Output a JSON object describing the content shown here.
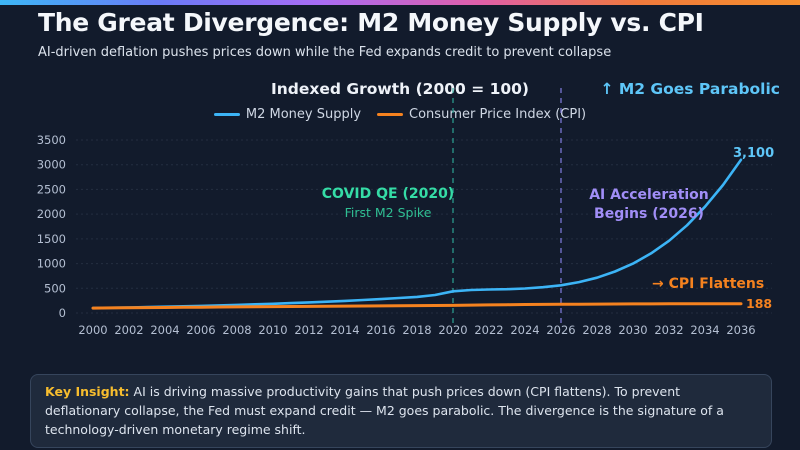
{
  "colors": {
    "background": "#121b2c",
    "panel": "#1f2a3c",
    "panel_border": "#36455c",
    "title_text": "#f4f7fb",
    "subtitle_text": "#dbe2ec",
    "axis_text": "#b4bfd2",
    "m2_blue": "#3cb4f6",
    "m2_label": "#5ec6f8",
    "cpi_orange": "#f5821f",
    "covid_green": "#35dca6",
    "ai_purple": "#a18ef7",
    "insight_gold": "#f7bd2e",
    "marker_teal": "#2fae9d",
    "marker_purple": "#8b85f0"
  },
  "accent_gradient": [
    "#3db7f7",
    "#6a7bf7",
    "#a86cf5",
    "#e05fa9",
    "#f07a3c",
    "#f78f2e"
  ],
  "header": {
    "title": "The Great Divergence: M2 Money Supply vs. CPI",
    "subtitle": "AI-driven deflation pushes prices down while the Fed expands credit to prevent collapse"
  },
  "chart_data": {
    "type": "line",
    "title": "Indexed Growth (2000 = 100)",
    "xlabel": "",
    "ylabel": "",
    "xlim": [
      2000,
      2036
    ],
    "ylim": [
      0,
      3500
    ],
    "grid": true,
    "legend_position": "top-center",
    "x": [
      2000,
      2001,
      2002,
      2003,
      2004,
      2005,
      2006,
      2007,
      2008,
      2009,
      2010,
      2011,
      2012,
      2013,
      2014,
      2015,
      2016,
      2017,
      2018,
      2019,
      2020,
      2021,
      2022,
      2023,
      2024,
      2025,
      2026,
      2027,
      2028,
      2029,
      2030,
      2031,
      2032,
      2033,
      2034,
      2035,
      2036
    ],
    "xticks": [
      2000,
      2002,
      2004,
      2006,
      2008,
      2010,
      2012,
      2014,
      2016,
      2018,
      2020,
      2022,
      2024,
      2026,
      2028,
      2030,
      2032,
      2034,
      2036
    ],
    "yticks": [
      0,
      500,
      1000,
      1500,
      2000,
      2500,
      3000,
      3500
    ],
    "series": [
      {
        "name": "M2 Money Supply",
        "color": "#3cb4f6",
        "line_width": 2.6,
        "end_label": "3,100",
        "values": [
          100,
          106,
          112,
          119,
          127,
          135,
          144,
          153,
          164,
          175,
          187,
          200,
          214,
          229,
          245,
          263,
          282,
          303,
          326,
          365,
          440,
          465,
          475,
          482,
          495,
          522,
          560,
          625,
          715,
          840,
          1000,
          1205,
          1460,
          1775,
          2150,
          2590,
          3100
        ]
      },
      {
        "name": "Consumer Price Index (CPI)",
        "color": "#f5821f",
        "line_width": 3,
        "end_label": "188",
        "values": [
          100,
          103,
          106,
          109,
          112,
          115,
          118,
          121,
          124,
          126,
          129,
          132,
          134,
          137,
          139,
          142,
          144,
          147,
          149,
          151,
          154,
          159,
          164,
          168,
          171,
          174,
          176,
          178.5,
          180.5,
          182,
          183.5,
          184.8,
          185.8,
          186.6,
          187.2,
          187.7,
          188
        ]
      }
    ],
    "markers": [
      {
        "x": 2020,
        "color": "#2fae9d",
        "label": "COVID QE (2020)",
        "sublabel": "First M2 Spike"
      },
      {
        "x": 2026,
        "color": "#8b85f0",
        "label": "AI Acceleration Begins (2026)"
      }
    ]
  },
  "annotations": {
    "m2_parabolic": "↑ M2 Goes Parabolic",
    "cpi_flattens": "→ CPI Flattens"
  },
  "insight": {
    "label": "Key Insight:",
    "text": " AI is driving massive productivity gains that push prices down (CPI flattens). To prevent deflationary collapse, the Fed must expand credit — M2 goes parabolic. The divergence is the signature of a technology-driven monetary regime shift."
  }
}
